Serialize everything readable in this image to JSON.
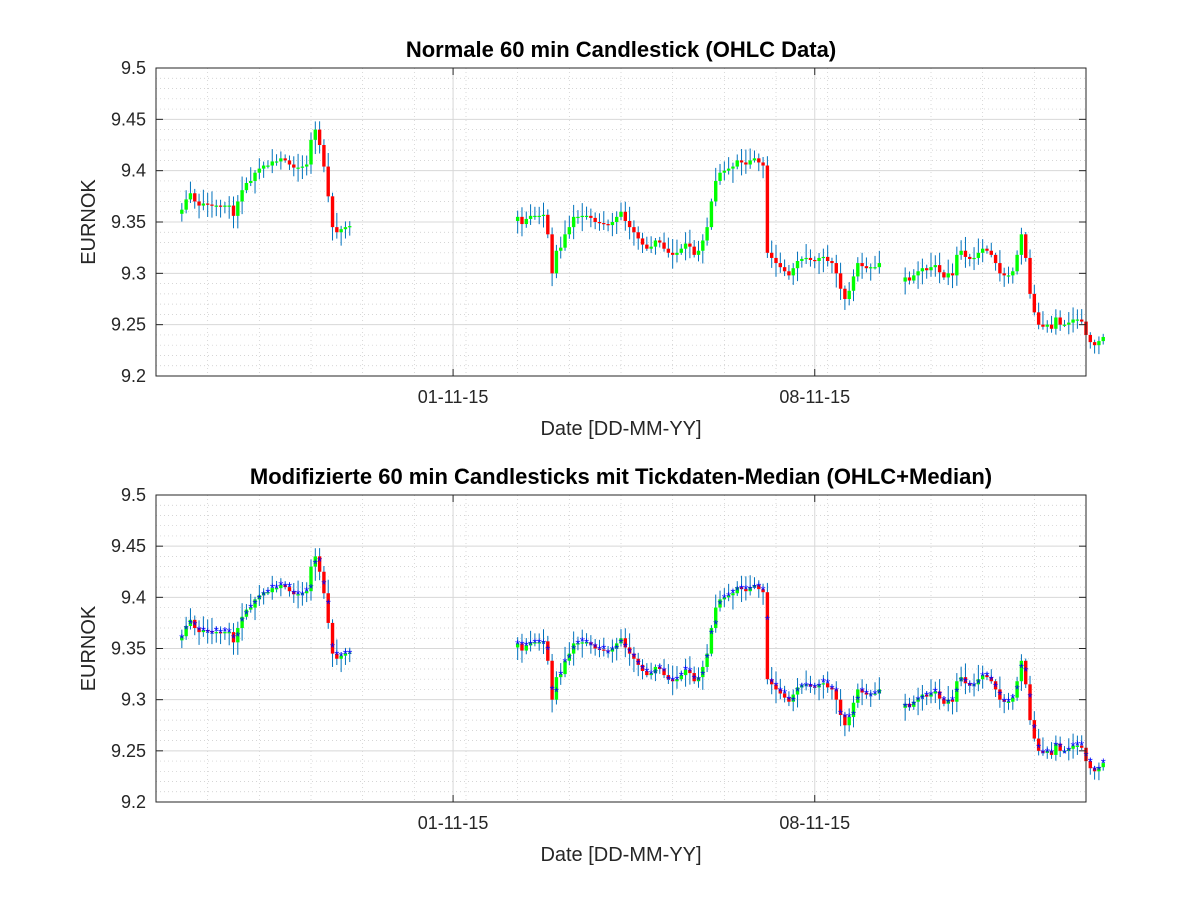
{
  "figure": {
    "background": "#ffffff",
    "colors": {
      "up": "#00ff00",
      "down": "#ff0000",
      "wick": "#0072bd",
      "median": "#0000ff",
      "grid_major": "#d8d8d8",
      "grid_minor": "#c8c8c8",
      "axis": "#262626"
    }
  },
  "chart_data": [
    {
      "type": "candlestick",
      "title": "Normale 60 min Candlestick (OHLC Data)",
      "xlabel": "Date [DD-MM-YY]",
      "ylabel": "EURNOK",
      "xlim": [
        "2015-10-26 06:00",
        "2015-11-13 06:00"
      ],
      "ylim": [
        9.2,
        9.5
      ],
      "y_ticks": [
        "9.2",
        "9.25",
        "9.3",
        "9.35",
        "9.4",
        "9.45",
        "9.5"
      ],
      "x_ticks": [
        {
          "date": "2015-11-01",
          "label": "01-11-15"
        },
        {
          "date": "2015-11-08",
          "label": "08-11-15"
        }
      ],
      "grid": true,
      "minor_grid": true,
      "show_median": false,
      "series": [
        {
          "segment": "2015-10-26 18:00 to 2015-10-29 23:00",
          "close": [
            9.362,
            9.372,
            9.378,
            9.37,
            9.366,
            9.368,
            9.367,
            9.366,
            9.366,
            9.365,
            9.366,
            9.366,
            9.356,
            9.37,
            9.381,
            9.388,
            9.39,
            9.398,
            9.402,
            9.405,
            9.405,
            9.409,
            9.409,
            9.412,
            9.41,
            9.406,
            9.403,
            9.403,
            9.404,
            9.406,
            9.43,
            9.44,
            9.425,
            9.404,
            9.375,
            9.345,
            9.34,
            9.343,
            9.345,
            9.346
          ]
        },
        {
          "segment": "2015-11-02 06:00 to 2015-11-06 22:00",
          "close": [
            9.355,
            9.348,
            9.353,
            9.356,
            9.356,
            9.356,
            9.357,
            9.338,
            9.3,
            9.322,
            9.325,
            9.338,
            9.345,
            9.355,
            9.355,
            9.356,
            9.356,
            9.354,
            9.35,
            9.349,
            9.348,
            9.347,
            9.35,
            9.355,
            9.36,
            9.351,
            9.345,
            9.34,
            9.334,
            9.328,
            9.324,
            9.326,
            9.332,
            9.33,
            9.324,
            9.32,
            9.318,
            9.32,
            9.324,
            9.329,
            9.326,
            9.318,
            9.322,
            9.332,
            9.345,
            9.37,
            9.39,
            9.398,
            9.4,
            9.402,
            9.404,
            9.41,
            9.408,
            9.406,
            9.41,
            9.412,
            9.408,
            9.405,
            9.32,
            9.315,
            9.31,
            9.306,
            9.302,
            9.298,
            9.305,
            9.312,
            9.314,
            9.315,
            9.313,
            9.312,
            9.315,
            9.316,
            9.312,
            9.31,
            9.3,
            9.285,
            9.275,
            9.283,
            9.297,
            9.31,
            9.307,
            9.305,
            9.306,
            9.306,
            9.31
          ]
        },
        {
          "segment": "2015-11-09 18:00 to 2015-11-12 22:00",
          "close": [
            9.296,
            9.293,
            9.298,
            9.302,
            9.305,
            9.303,
            9.306,
            9.308,
            9.301,
            9.296,
            9.3,
            9.298,
            9.318,
            9.322,
            9.316,
            9.314,
            9.315,
            9.32,
            9.324,
            9.322,
            9.318,
            9.31,
            9.3,
            9.298,
            9.298,
            9.302,
            9.318,
            9.338,
            9.315,
            9.28,
            9.262,
            9.25,
            9.248,
            9.25,
            9.246,
            9.257,
            9.25,
            9.25,
            9.252,
            9.255,
            9.255,
            9.253,
            9.24,
            9.233,
            9.23,
            9.234,
            9.238
          ]
        }
      ]
    },
    {
      "type": "candlestick",
      "title": "Modifizierte 60 min Candlesticks mit Tickdaten-Median (OHLC+Median)",
      "xlabel": "Date [DD-MM-YY]",
      "ylabel": "EURNOK",
      "xlim": [
        "2015-10-26 06:00",
        "2015-11-13 06:00"
      ],
      "ylim": [
        9.2,
        9.5
      ],
      "y_ticks": [
        "9.2",
        "9.25",
        "9.3",
        "9.35",
        "9.4",
        "9.45",
        "9.5"
      ],
      "x_ticks": [
        {
          "date": "2015-11-01",
          "label": "01-11-15"
        },
        {
          "date": "2015-11-08",
          "label": "08-11-15"
        }
      ],
      "grid": true,
      "minor_grid": true,
      "show_median": true,
      "median_marker": "*",
      "series_ref": "same OHLC candles as the upper chart, plus a blue median marker per candle"
    }
  ]
}
